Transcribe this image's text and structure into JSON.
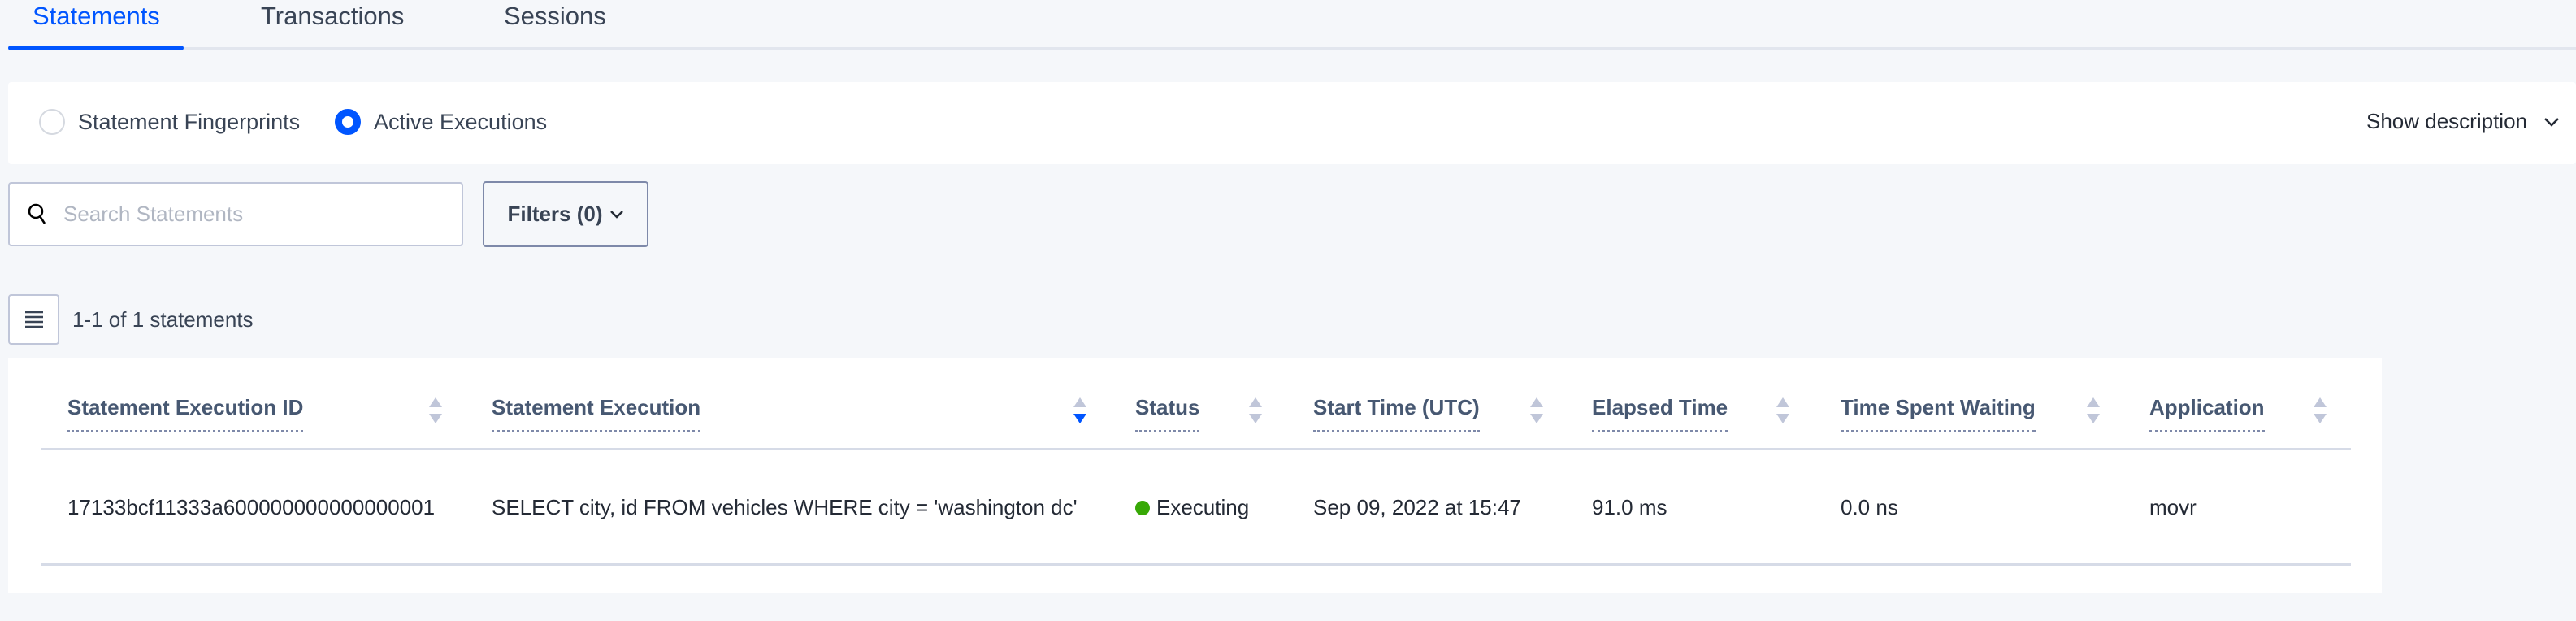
{
  "tabs": [
    {
      "label": "Statements",
      "active": true
    },
    {
      "label": "Transactions",
      "active": false
    },
    {
      "label": "Sessions",
      "active": false
    }
  ],
  "view_toggle": {
    "options": [
      {
        "label": "Statement Fingerprints",
        "selected": false
      },
      {
        "label": "Active Executions",
        "selected": true
      }
    ]
  },
  "show_description": "Show description",
  "search": {
    "placeholder": "Search Statements",
    "value": ""
  },
  "filters_label": "Filters (0)",
  "count_text": "1-1 of 1 statements",
  "colors": {
    "accent": "#0055ff",
    "status_executing": "#37a806"
  },
  "table": {
    "columns": [
      {
        "label": "Statement Execution ID",
        "sort": "none"
      },
      {
        "label": "Statement Execution",
        "sort": "descending"
      },
      {
        "label": "Status",
        "sort": "none"
      },
      {
        "label": "Start Time (UTC)",
        "sort": "none"
      },
      {
        "label": "Elapsed Time",
        "sort": "none"
      },
      {
        "label": "Time Spent Waiting",
        "sort": "none"
      },
      {
        "label": "Application",
        "sort": "none"
      }
    ],
    "rows": [
      {
        "id": "17133bcf11333a600000000000000001",
        "statement": "SELECT city, id FROM vehicles WHERE city = 'washington dc'",
        "status": "Executing",
        "start_time": "Sep 09, 2022 at 15:47",
        "elapsed": "91.0 ms",
        "waiting": "0.0 ns",
        "application": "movr"
      }
    ]
  }
}
